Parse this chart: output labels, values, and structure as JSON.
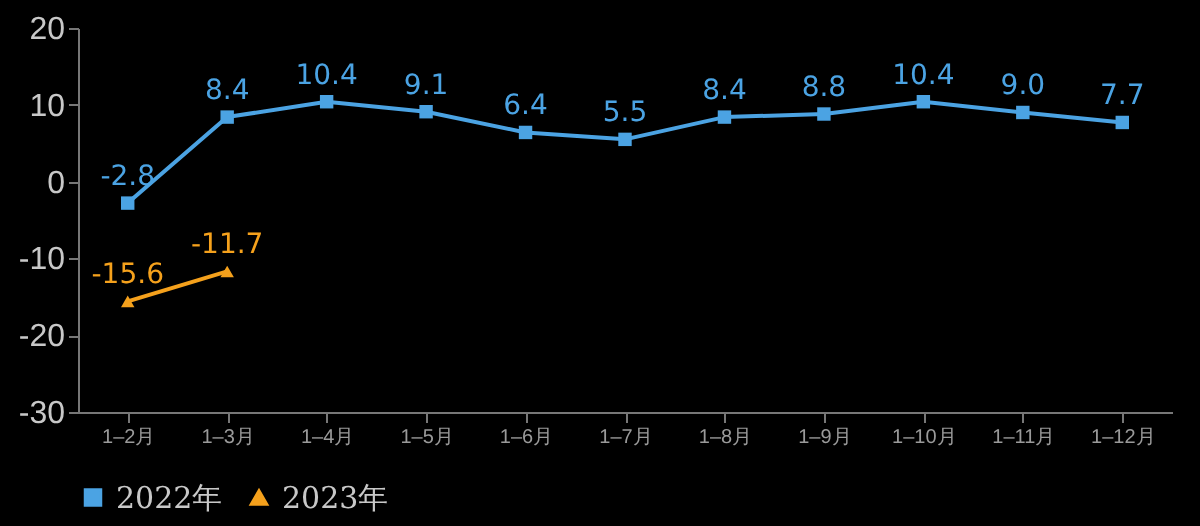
{
  "chart_data": {
    "type": "line",
    "categories": [
      "1–2月",
      "1–3月",
      "1–4月",
      "1–5月",
      "1–6月",
      "1–7月",
      "1–8月",
      "1–9月",
      "1–10月",
      "1–11月",
      "1–12月"
    ],
    "series": [
      {
        "name": "2022年",
        "color": "#4ba3e3",
        "marker": "square",
        "values": [
          -2.8,
          8.4,
          10.4,
          9.1,
          6.4,
          5.5,
          8.4,
          8.8,
          10.4,
          9.0,
          7.7
        ],
        "value_labels": [
          "-2.8",
          "8.4",
          "10.4",
          "9.1",
          "6.4",
          "5.5",
          "8.4",
          "8.8",
          "10.4",
          "9.0",
          "7.7"
        ]
      },
      {
        "name": "2023年",
        "color": "#f5a11c",
        "marker": "triangle",
        "values": [
          -15.6,
          -11.7,
          null,
          null,
          null,
          null,
          null,
          null,
          null,
          null,
          null
        ],
        "value_labels": [
          "-15.6",
          "-11.7",
          null,
          null,
          null,
          null,
          null,
          null,
          null,
          null,
          null
        ]
      }
    ],
    "ylim": [
      -30,
      20
    ],
    "yticks": [
      -30,
      -20,
      -10,
      0,
      10,
      20
    ],
    "legend": "bottom",
    "grid": false,
    "line_style": "solid"
  }
}
